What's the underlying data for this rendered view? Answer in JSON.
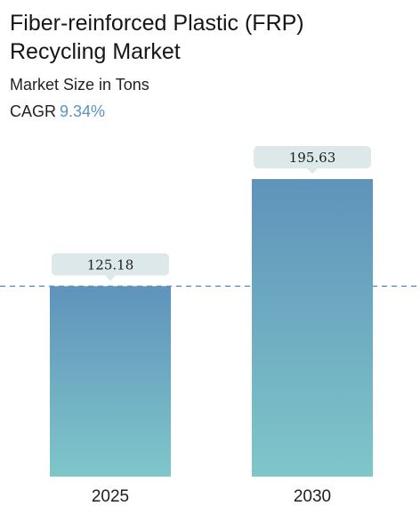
{
  "header": {
    "title": "Fiber-reinforced Plastic (FRP) Recycling Market",
    "subtitle": "Market Size in Tons",
    "cagr_label": "CAGR",
    "cagr_value": "9.34%"
  },
  "colors": {
    "bar_top": "#5f93bb",
    "bar_bottom": "#7fc6c9",
    "label_bg": "#dde8eb",
    "reference_line": "#5a86b4",
    "cagr_accent": "#5a93c4"
  },
  "chart_data": {
    "type": "bar",
    "title": "Fiber-reinforced Plastic (FRP) Recycling Market",
    "subtitle": "Market Size in Tons",
    "categories": [
      "2025",
      "2030"
    ],
    "values": [
      125.18,
      195.63
    ],
    "value_labels": [
      "125.18",
      "195.63"
    ],
    "xlabel": "",
    "ylabel": "",
    "ylim": [
      0,
      195.63
    ],
    "reference_line": {
      "value": 125.18,
      "style": "dashed"
    },
    "grid": false,
    "legend": "none"
  }
}
